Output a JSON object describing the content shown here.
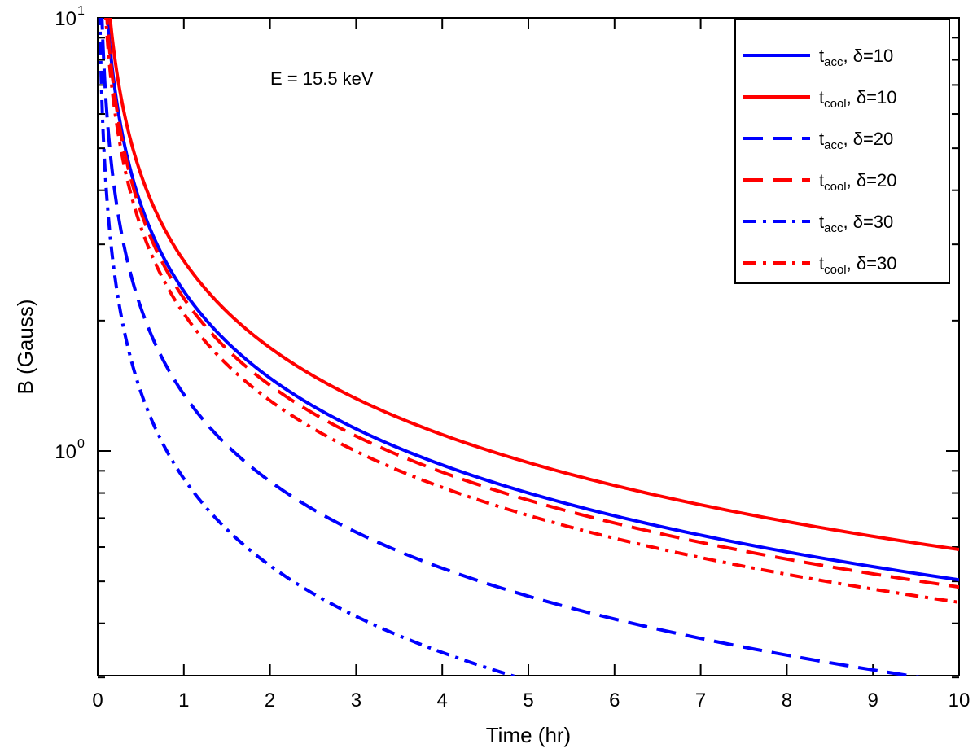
{
  "chart_data": {
    "type": "line",
    "title": "",
    "xlabel": "Time (hr)",
    "ylabel": "B (Gauss)",
    "xlim": [
      0,
      10
    ],
    "ylim": [
      0.3,
      10
    ],
    "yscale": "log",
    "grid": false,
    "legend_position": "top-right",
    "annotation": "E = 15.5 keV",
    "x_ticks": [
      "0",
      "1",
      "2",
      "3",
      "4",
      "5",
      "6",
      "7",
      "8",
      "9",
      "10"
    ],
    "y_ticks": [
      {
        "base": "10",
        "exp": "0",
        "value": 1
      },
      {
        "base": "10",
        "exp": "1",
        "value": 10
      }
    ],
    "series": [
      {
        "name": "t_acc, δ=10",
        "label_main": "t",
        "label_sub": "acc",
        "label_rest": ", δ=10",
        "color": "#0000ff",
        "dash": "solid",
        "anchor_x": 5.0,
        "anchor_y": 0.8
      },
      {
        "name": "t_cool, δ=10",
        "label_main": "t",
        "label_sub": "cool",
        "label_rest": ", δ=10",
        "color": "#ff0000",
        "dash": "solid",
        "anchor_x": 5.0,
        "anchor_y": 0.94
      },
      {
        "name": "t_acc, δ=20",
        "label_main": "t",
        "label_sub": "acc",
        "label_rest": ", δ=20",
        "color": "#0000ff",
        "dash": "dashed",
        "anchor_x": 5.0,
        "anchor_y": 0.462
      },
      {
        "name": "t_cool, δ=20",
        "label_main": "t",
        "label_sub": "cool",
        "label_rest": ", δ=20",
        "color": "#ff0000",
        "dash": "dashed",
        "anchor_x": 5.0,
        "anchor_y": 0.77
      },
      {
        "name": "t_acc, δ=30",
        "label_main": "t",
        "label_sub": "acc",
        "label_rest": ", δ=30",
        "color": "#0000ff",
        "dash": "dashdot",
        "anchor_x": 3.0,
        "anchor_y": 0.415
      },
      {
        "name": "t_cool, δ=30",
        "label_main": "t",
        "label_sub": "cool",
        "label_rest": ", δ=30",
        "color": "#ff0000",
        "dash": "dashdot",
        "anchor_x": 5.0,
        "anchor_y": 0.71
      }
    ]
  }
}
